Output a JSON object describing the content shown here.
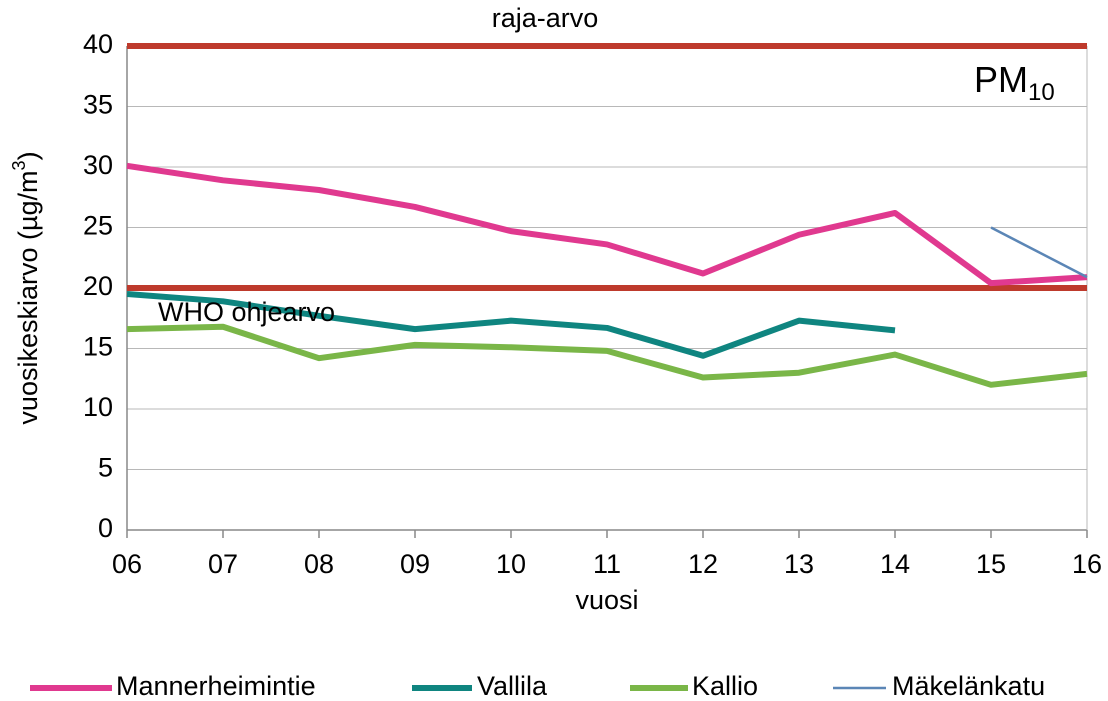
{
  "chart_data": {
    "type": "line",
    "title": "PM",
    "title_sub": "10",
    "ylabel": "vuosikeskiarvo (µg/m",
    "ylabel_sup": "3",
    "ylabel_end": ")",
    "xlabel": "vuosi",
    "categories": [
      "06",
      "07",
      "08",
      "09",
      "10",
      "11",
      "12",
      "13",
      "14",
      "15",
      "16"
    ],
    "series": [
      {
        "name": "Mannerheimintie",
        "color": "#e0398f",
        "width": 6,
        "values": [
          30.1,
          28.9,
          28.1,
          26.7,
          24.7,
          23.6,
          21.2,
          24.4,
          26.2,
          20.4,
          20.9
        ]
      },
      {
        "name": "Vallila",
        "color": "#0f8580",
        "width": 6,
        "values": [
          19.5,
          18.9,
          17.7,
          16.6,
          17.3,
          16.7,
          14.4,
          17.3,
          16.5,
          null,
          null
        ]
      },
      {
        "name": "Kallio",
        "color": "#7ab648",
        "width": 6,
        "values": [
          16.6,
          16.8,
          14.2,
          15.3,
          15.1,
          14.8,
          12.6,
          13.0,
          14.5,
          12.0,
          12.9
        ]
      },
      {
        "name": "Mäkelänkatu",
        "color": "#5b86b6",
        "width": 2.5,
        "values": [
          null,
          null,
          null,
          null,
          null,
          null,
          null,
          null,
          null,
          25.0,
          20.9
        ]
      }
    ],
    "reference_lines": [
      {
        "value": 40,
        "label": "raja-arvo",
        "color": "#be3a2c"
      },
      {
        "value": 20,
        "label": "WHO ohjearvo",
        "color": "#be3a2c"
      }
    ],
    "ylim": [
      0,
      40
    ],
    "yticks": [
      0,
      5,
      10,
      15,
      20,
      25,
      30,
      35,
      40
    ],
    "grid": true,
    "legend": "bottom"
  }
}
